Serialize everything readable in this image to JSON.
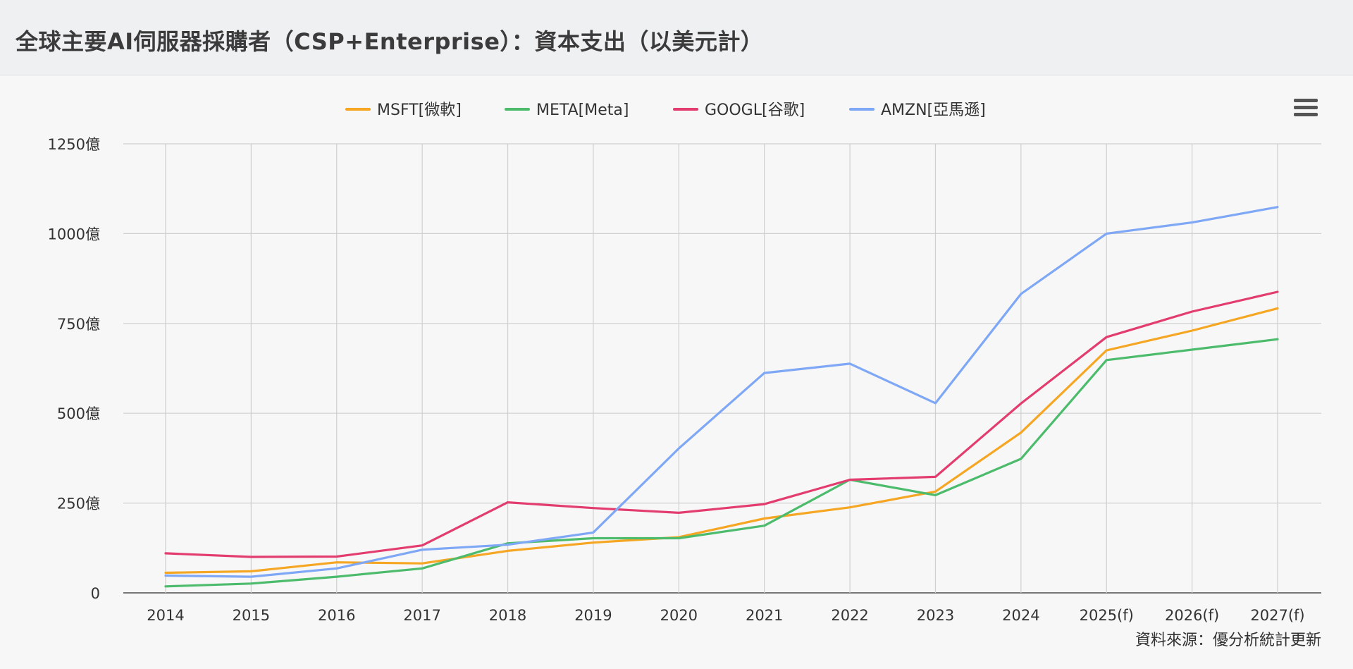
{
  "header": {
    "title": "全球主要AI伺服器採購者（CSP+Enterprise）：資本支出（以美元計）"
  },
  "menu": {
    "icon": "hamburger-menu-icon"
  },
  "chart_data": {
    "type": "line",
    "title": "全球主要AI伺服器採購者（CSP+Enterprise）：資本支出（以美元計）",
    "categories": [
      "2014",
      "2015",
      "2016",
      "2017",
      "2018",
      "2019",
      "2020",
      "2021",
      "2022",
      "2023",
      "2024",
      "2025(f)",
      "2026(f)",
      "2027(f)"
    ],
    "y_ticks": [
      {
        "value": 0,
        "label": "0"
      },
      {
        "value": 250,
        "label": "250億"
      },
      {
        "value": 500,
        "label": "500億"
      },
      {
        "value": 750,
        "label": "750億"
      },
      {
        "value": 1000,
        "label": "1000億"
      },
      {
        "value": 1250,
        "label": "1250億"
      }
    ],
    "ylim": [
      0,
      1250
    ],
    "grid": true,
    "legend_position": "top-center",
    "source_note": "資料來源：優分析統計更新",
    "series": [
      {
        "name": "MSFT[微軟]",
        "color": "#f5a623",
        "values": [
          56,
          60,
          85,
          82,
          117,
          140,
          155,
          207,
          238,
          282,
          446,
          675,
          730,
          792
        ]
      },
      {
        "name": "META[Meta]",
        "color": "#4cbb6c",
        "values": [
          18,
          26,
          45,
          68,
          138,
          152,
          152,
          187,
          315,
          272,
          373,
          648,
          677,
          706
        ]
      },
      {
        "name": "GOOGL[谷歌]",
        "color": "#e33d6f",
        "values": [
          110,
          100,
          101,
          132,
          252,
          236,
          223,
          247,
          315,
          323,
          527,
          712,
          783,
          838
        ]
      },
      {
        "name": "AMZN[亞馬遜]",
        "color": "#7ea7f5",
        "values": [
          48,
          45,
          68,
          120,
          134,
          168,
          402,
          612,
          638,
          528,
          832,
          1000,
          1031,
          1074
        ]
      }
    ]
  }
}
